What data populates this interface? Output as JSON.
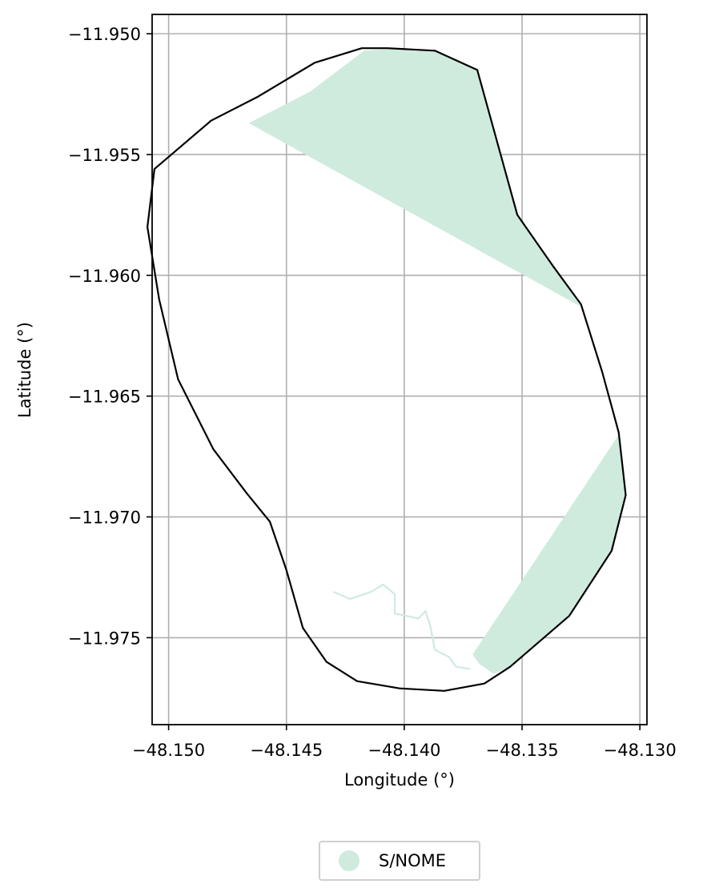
{
  "chart_data": {
    "type": "map",
    "xlabel": "Longitude (°)",
    "ylabel": "Latitude (°)",
    "xlim": [
      -48.1507,
      -48.1297
    ],
    "ylim": [
      -11.9786,
      -11.9492
    ],
    "xticks": [
      -48.15,
      -48.145,
      -48.14,
      -48.135,
      -48.13
    ],
    "xtick_labels": [
      "−48.150",
      "−48.145",
      "−48.140",
      "−48.135",
      "−48.130"
    ],
    "yticks": [
      -11.95,
      -11.955,
      -11.96,
      -11.965,
      -11.97,
      -11.975
    ],
    "ytick_labels": [
      "−11.950",
      "−11.955",
      "−11.960",
      "−11.965",
      "−11.970",
      "−11.975"
    ],
    "grid": true,
    "legend_placement": "bottom-center",
    "legend": [
      {
        "label": "S/NOME",
        "color": "#cfebdd"
      }
    ],
    "fill_color": "#cfebdd",
    "boundary_color": "#000000",
    "boundary": [
      [
        -48.1383,
        -11.9772
      ],
      [
        -48.1402,
        -11.9771
      ],
      [
        -48.142,
        -11.9768
      ],
      [
        -48.1433,
        -11.976
      ],
      [
        -48.1443,
        -11.9746
      ],
      [
        -48.145,
        -11.9722
      ],
      [
        -48.1457,
        -11.9702
      ],
      [
        -48.1467,
        -11.969
      ],
      [
        -48.1481,
        -11.9672
      ],
      [
        -48.1496,
        -11.9643
      ],
      [
        -48.1504,
        -11.961
      ],
      [
        -48.1509,
        -11.958
      ],
      [
        -48.1506,
        -11.9556
      ],
      [
        -48.1482,
        -11.9536
      ],
      [
        -48.1462,
        -11.9526
      ],
      [
        -48.1438,
        -11.9512
      ],
      [
        -48.1418,
        -11.9506
      ],
      [
        -48.1407,
        -11.9506
      ],
      [
        -48.1387,
        -11.9507
      ],
      [
        -48.1369,
        -11.9515
      ],
      [
        -48.1352,
        -11.9575
      ],
      [
        -48.1337,
        -11.9596
      ],
      [
        -48.1325,
        -11.9612
      ],
      [
        -48.1316,
        -11.964
      ],
      [
        -48.1309,
        -11.9665
      ],
      [
        -48.1306,
        -11.9691
      ],
      [
        -48.1312,
        -11.9714
      ],
      [
        -48.133,
        -11.9741
      ],
      [
        -48.1355,
        -11.9762
      ],
      [
        -48.1366,
        -11.9769
      ]
    ],
    "fill_regions": [
      {
        "name": "S/NOME",
        "points": [
          [
            -48.1466,
            -11.9537
          ],
          [
            -48.144,
            -11.9524
          ],
          [
            -48.1417,
            -11.9507
          ],
          [
            -48.1402,
            -11.9506
          ],
          [
            -48.1387,
            -11.9507
          ],
          [
            -48.1369,
            -11.9515
          ],
          [
            -48.1352,
            -11.9575
          ],
          [
            -48.1337,
            -11.9596
          ],
          [
            -48.1325,
            -11.9613
          ]
        ]
      },
      {
        "name": "S/NOME",
        "points": [
          [
            -48.1309,
            -11.9666
          ],
          [
            -48.1306,
            -11.9691
          ],
          [
            -48.1312,
            -11.9714
          ],
          [
            -48.133,
            -11.9741
          ],
          [
            -48.1355,
            -11.9762
          ],
          [
            -48.1362,
            -11.9765
          ],
          [
            -48.1368,
            -11.9761
          ],
          [
            -48.1371,
            -11.9757
          ]
        ]
      }
    ],
    "stream_line": [
      [
        -48.143,
        -11.9731
      ],
      [
        -48.1423,
        -11.9734
      ],
      [
        -48.1414,
        -11.9731
      ],
      [
        -48.1409,
        -11.9728
      ],
      [
        -48.1404,
        -11.9732
      ],
      [
        -48.1404,
        -11.974
      ],
      [
        -48.1394,
        -11.9742
      ],
      [
        -48.1391,
        -11.9739
      ],
      [
        -48.1389,
        -11.9745
      ],
      [
        -48.1387,
        -11.9755
      ],
      [
        -48.1381,
        -11.9758
      ],
      [
        -48.1378,
        -11.9762
      ],
      [
        -48.1372,
        -11.9763
      ]
    ]
  }
}
